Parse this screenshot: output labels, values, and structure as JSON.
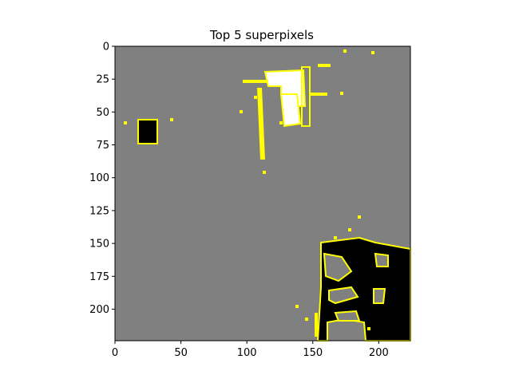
{
  "figure": {
    "title": "Top 5 superpixels"
  },
  "plot": {
    "type": "image",
    "x_ticks": [
      "0",
      "50",
      "100",
      "150",
      "200"
    ],
    "y_ticks": [
      "0",
      "25",
      "50",
      "75",
      "100",
      "125",
      "150",
      "175",
      "200"
    ],
    "xlim": [
      0,
      224
    ],
    "ylim": [
      224,
      0
    ],
    "colors": {
      "background": "#808080",
      "boundary": "#ffff00",
      "dark_region": "#000000",
      "light_region": "#ffffff",
      "frame": "#000000"
    }
  }
}
